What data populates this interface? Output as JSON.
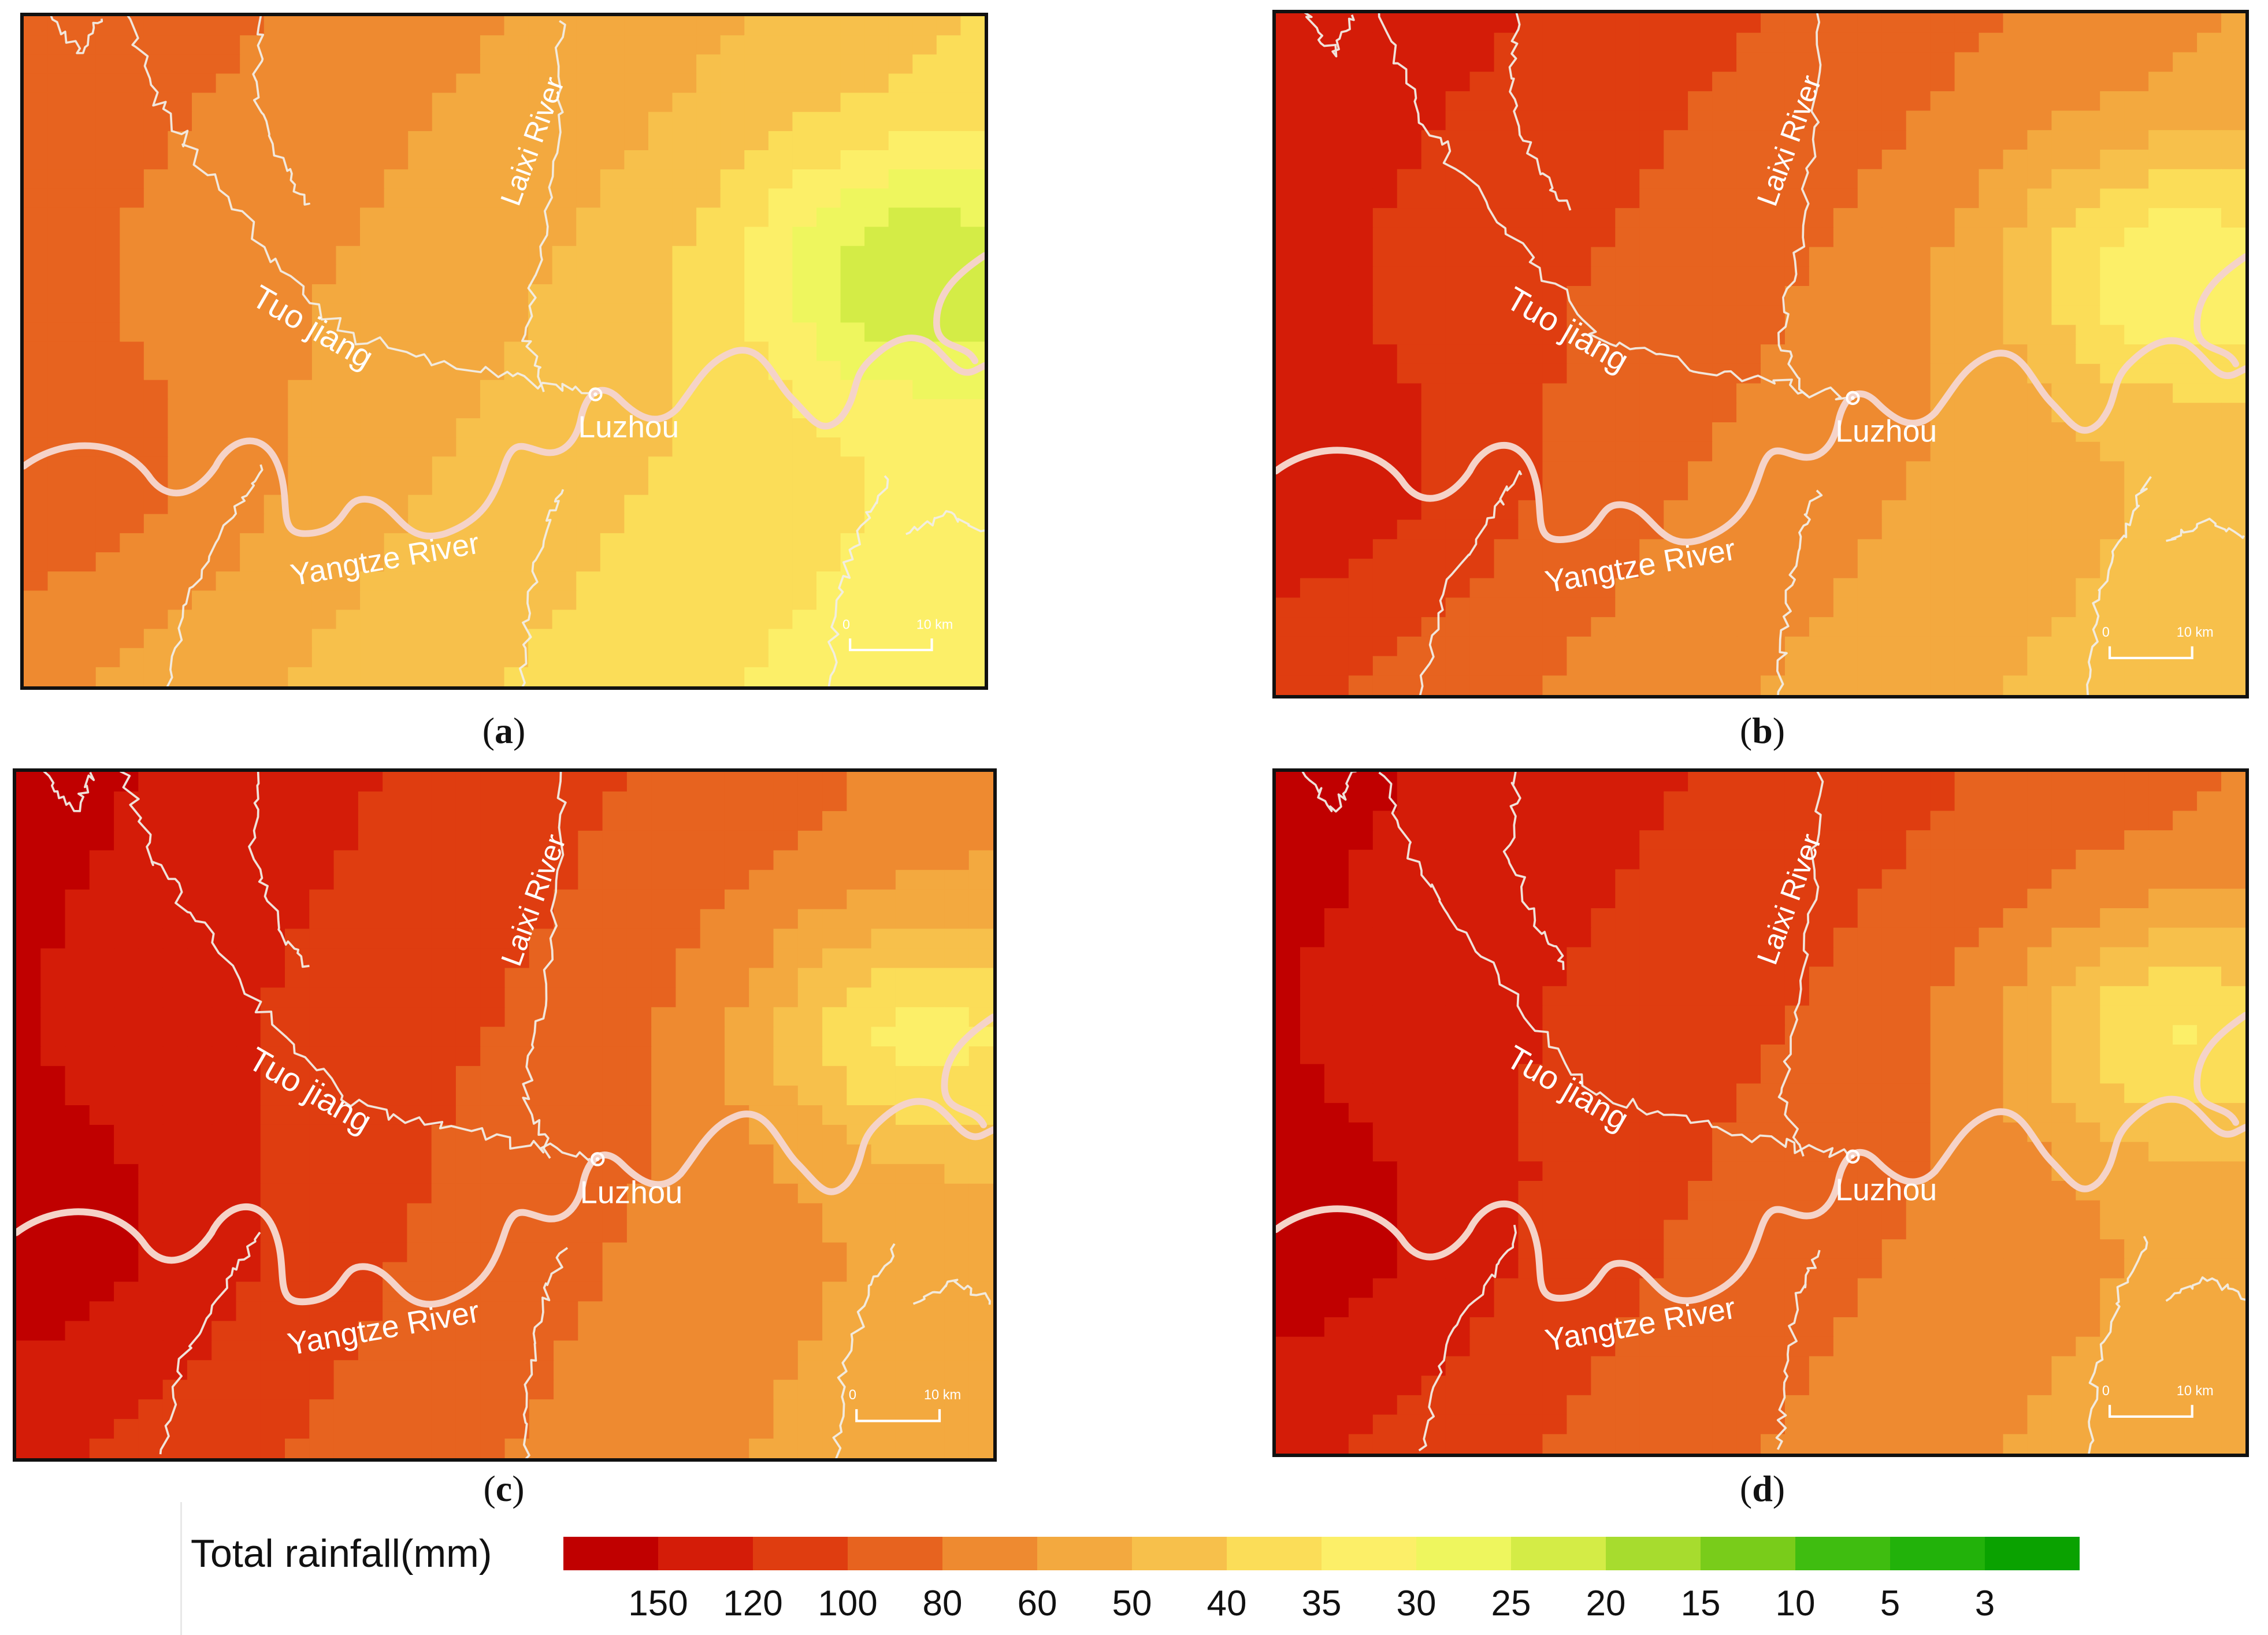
{
  "panels": [
    {
      "id": "a",
      "label": "a",
      "scheme": [
        0.75,
        0.55,
        0.35,
        0.15
      ]
    },
    {
      "id": "b",
      "label": "b",
      "scheme": [
        0.95,
        0.75,
        0.55,
        0.35
      ]
    },
    {
      "id": "c",
      "label": "c",
      "scheme": [
        1.0,
        0.85,
        0.6,
        0.45
      ]
    },
    {
      "id": "d",
      "label": "d",
      "scheme": [
        1.0,
        0.85,
        0.65,
        0.45
      ]
    }
  ],
  "map_labels": {
    "tuo": "Tuo jiang",
    "laixi": "Laixi River",
    "luzhou": "Luzhou",
    "yangtze": "Yangtze River",
    "scale_zero": "0",
    "scale_ten": "10 km"
  },
  "legend": {
    "title": "Total rainfall(mm)",
    "colors": [
      "#c00000",
      "#d41c08",
      "#df3d10",
      "#e7631f",
      "#ee8a30",
      "#f3a93f",
      "#f7c04b",
      "#fbdd58",
      "#fcef68",
      "#eef65e",
      "#d4ec46",
      "#a7dc2e",
      "#79cc1a",
      "#3fbd10",
      "#22b20a",
      "#0aa200"
    ],
    "labels": [
      "150",
      "120",
      "100",
      "80",
      "60",
      "50",
      "40",
      "35",
      "30",
      "25",
      "20",
      "15",
      "10",
      "5",
      "3"
    ]
  }
}
